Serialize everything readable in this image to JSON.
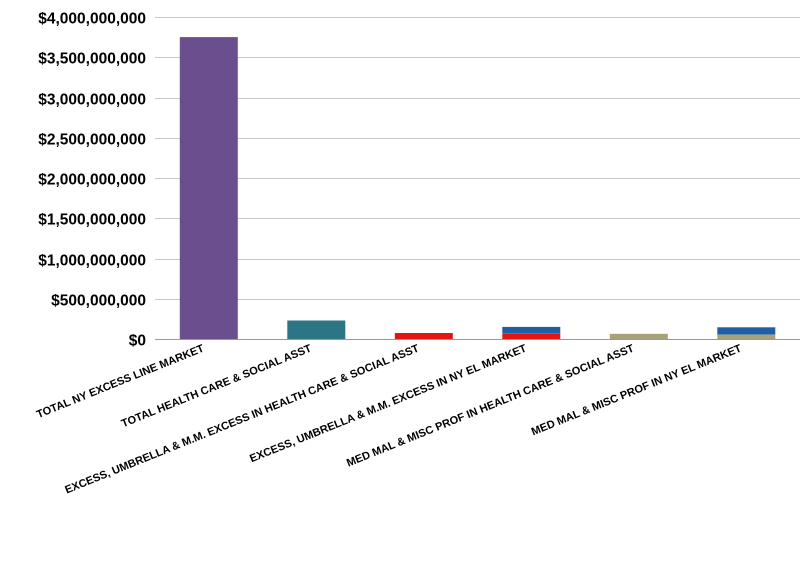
{
  "chart_data": {
    "type": "bar",
    "stacked": true,
    "categories": [
      "TOTAL NY EXCESS LINE MARKET",
      "TOTAL HEALTH CARE & SOCIAL ASST",
      "EXCESS, UMBRELLA & M.M. EXCESS IN HEALTH CARE & SOCIAL ASST",
      "EXCESS, UMBRELLA & M.M. EXCESS IN NY EL MARKET",
      "MED MAL & MISC PROF IN HEALTH CARE & SOCIAL ASST",
      "MED MAL & MISC PROF IN NY EL MARKET"
    ],
    "segments": [
      [
        {
          "value": 3750000000,
          "color": "#6b4e8e"
        }
      ],
      [
        {
          "value": 230000000,
          "color": "#2b7585"
        }
      ],
      [
        {
          "value": 75000000,
          "color": "#e31414"
        }
      ],
      [
        {
          "value": 65000000,
          "color": "#e31414"
        },
        {
          "value": 85000000,
          "color": "#1f5fa6"
        }
      ],
      [
        {
          "value": 65000000,
          "color": "#a8a27a"
        }
      ],
      [
        {
          "value": 55000000,
          "color": "#a8a27a"
        },
        {
          "value": 90000000,
          "color": "#1f5fa6"
        }
      ]
    ],
    "ylim": [
      0,
      4000000000
    ],
    "yticks": [
      0,
      500000000,
      1000000000,
      1500000000,
      2000000000,
      2500000000,
      3000000000,
      3500000000,
      4000000000
    ],
    "ytick_labels": [
      "$0",
      "$500,000,000",
      "$1,000,000,000",
      "$1,500,000,000",
      "$2,000,000,000",
      "$2,500,000,000",
      "$3,000,000,000",
      "$3,500,000,000",
      "$4,000,000,000"
    ],
    "grid": true,
    "legend": "none"
  }
}
